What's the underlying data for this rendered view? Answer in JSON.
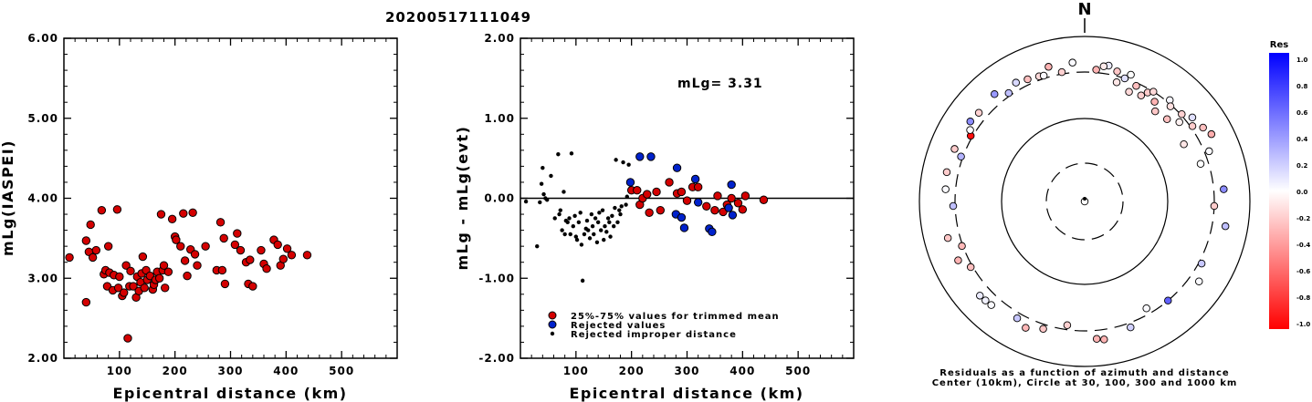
{
  "event_id": "20200517111049",
  "colors": {
    "accepted": "#d40000",
    "rejected": "#0022cc",
    "improper": "#000000"
  },
  "chart_data": [
    {
      "type": "scatter",
      "title": "20200517111049",
      "xlabel": "Epicentral distance (km)",
      "ylabel": "mLg(IASPEI)",
      "xlim": [
        0,
        600
      ],
      "ylim": [
        2.0,
        6.0
      ],
      "x_ticks": [
        "100",
        "200",
        "300",
        "400",
        "500"
      ],
      "y_ticks": [
        "2.00",
        "3.00",
        "4.00",
        "5.00",
        "6.00"
      ],
      "series": [
        {
          "points": [
            [
              10,
              3.26
            ],
            [
              40,
              2.7
            ],
            [
              40,
              3.47
            ],
            [
              45,
              3.33
            ],
            [
              48,
              3.67
            ],
            [
              52,
              3.26
            ],
            [
              58,
              3.35
            ],
            [
              68,
              3.85
            ],
            [
              72,
              3.05
            ],
            [
              75,
              3.1
            ],
            [
              78,
              2.9
            ],
            [
              80,
              3.4
            ],
            [
              82,
              3.07
            ],
            [
              88,
              2.85
            ],
            [
              90,
              3.04
            ],
            [
              96,
              3.86
            ],
            [
              98,
              2.88
            ],
            [
              100,
              3.02
            ],
            [
              105,
              2.78
            ],
            [
              108,
              2.82
            ],
            [
              112,
              3.16
            ],
            [
              115,
              2.25
            ],
            [
              118,
              2.9
            ],
            [
              120,
              3.09
            ],
            [
              125,
              2.9
            ],
            [
              130,
              2.76
            ],
            [
              132,
              3.02
            ],
            [
              135,
              2.84
            ],
            [
              138,
              2.95
            ],
            [
              140,
              3.06
            ],
            [
              142,
              3.27
            ],
            [
              145,
              2.88
            ],
            [
              148,
              3.1
            ],
            [
              150,
              2.98
            ],
            [
              155,
              3.03
            ],
            [
              160,
              2.86
            ],
            [
              162,
              2.92
            ],
            [
              165,
              2.98
            ],
            [
              168,
              3.08
            ],
            [
              172,
              3.0
            ],
            [
              175,
              3.8
            ],
            [
              178,
              3.1
            ],
            [
              180,
              3.16
            ],
            [
              182,
              2.88
            ],
            [
              188,
              3.08
            ],
            [
              195,
              3.74
            ],
            [
              200,
              3.52
            ],
            [
              202,
              3.48
            ],
            [
              210,
              3.4
            ],
            [
              215,
              3.81
            ],
            [
              218,
              3.22
            ],
            [
              222,
              3.03
            ],
            [
              228,
              3.36
            ],
            [
              232,
              3.82
            ],
            [
              236,
              3.3
            ],
            [
              240,
              3.16
            ],
            [
              255,
              3.4
            ],
            [
              275,
              3.1
            ],
            [
              282,
              3.7
            ],
            [
              285,
              3.1
            ],
            [
              288,
              3.5
            ],
            [
              290,
              2.93
            ],
            [
              308,
              3.42
            ],
            [
              312,
              3.56
            ],
            [
              318,
              3.35
            ],
            [
              328,
              3.2
            ],
            [
              332,
              2.93
            ],
            [
              335,
              3.23
            ],
            [
              340,
              2.9
            ],
            [
              355,
              3.35
            ],
            [
              360,
              3.18
            ],
            [
              365,
              3.12
            ],
            [
              378,
              3.48
            ],
            [
              385,
              3.42
            ],
            [
              390,
              3.16
            ],
            [
              395,
              3.24
            ],
            [
              402,
              3.37
            ],
            [
              410,
              3.29
            ],
            [
              438,
              3.29
            ]
          ]
        }
      ]
    },
    {
      "type": "scatter",
      "xlabel": "Epicentral distance (km)",
      "ylabel": "mLg - mLg(evt)",
      "xlim": [
        0,
        600
      ],
      "ylim": [
        -2.0,
        2.0
      ],
      "x_ticks": [
        "100",
        "200",
        "300",
        "400",
        "500"
      ],
      "y_ticks": [
        "-2.00",
        "-1.00",
        "0.00",
        "1.00",
        "2.00"
      ],
      "annotation": "mLg= 3.31",
      "legend_position": "bottom-left",
      "series": [
        {
          "name": "25%-75% values for trimmed mean",
          "marker": "red-circle",
          "points": [
            [
              200,
              0.1
            ],
            [
              210,
              0.1
            ],
            [
              215,
              -0.08
            ],
            [
              220,
              0.0
            ],
            [
              228,
              0.05
            ],
            [
              232,
              -0.18
            ],
            [
              245,
              0.08
            ],
            [
              252,
              -0.15
            ],
            [
              268,
              0.2
            ],
            [
              282,
              0.06
            ],
            [
              290,
              0.08
            ],
            [
              300,
              -0.03
            ],
            [
              310,
              0.14
            ],
            [
              320,
              0.14
            ],
            [
              335,
              -0.1
            ],
            [
              350,
              -0.15
            ],
            [
              355,
              0.03
            ],
            [
              365,
              -0.17
            ],
            [
              372,
              -0.08
            ],
            [
              380,
              0.0
            ],
            [
              392,
              -0.06
            ],
            [
              400,
              -0.14
            ],
            [
              405,
              0.03
            ],
            [
              438,
              -0.02
            ]
          ]
        },
        {
          "name": "Rejected values",
          "marker": "blue-circle",
          "points": [
            [
              198,
              0.2
            ],
            [
              215,
              0.52
            ],
            [
              235,
              0.52
            ],
            [
              280,
              -0.2
            ],
            [
              282,
              0.38
            ],
            [
              290,
              -0.24
            ],
            [
              295,
              -0.37
            ],
            [
              315,
              0.24
            ],
            [
              320,
              -0.05
            ],
            [
              340,
              -0.38
            ],
            [
              345,
              -0.42
            ],
            [
              375,
              -0.12
            ],
            [
              380,
              0.17
            ],
            [
              382,
              -0.21
            ]
          ]
        },
        {
          "name": "Rejected improper distance",
          "marker": "black-dot",
          "points": [
            [
              10,
              -0.04
            ],
            [
              30,
              -0.6
            ],
            [
              35,
              -0.05
            ],
            [
              38,
              0.18
            ],
            [
              40,
              0.38
            ],
            [
              42,
              0.05
            ],
            [
              45,
              0.0
            ],
            [
              48,
              -0.02
            ],
            [
              55,
              0.28
            ],
            [
              62,
              -0.25
            ],
            [
              68,
              0.55
            ],
            [
              70,
              -0.2
            ],
            [
              72,
              -0.15
            ],
            [
              75,
              -0.4
            ],
            [
              78,
              0.08
            ],
            [
              80,
              -0.45
            ],
            [
              82,
              -0.28
            ],
            [
              85,
              -0.3
            ],
            [
              88,
              -0.25
            ],
            [
              90,
              -0.45
            ],
            [
              92,
              0.56
            ],
            [
              95,
              -0.35
            ],
            [
              98,
              -0.22
            ],
            [
              100,
              -0.48
            ],
            [
              102,
              -0.52
            ],
            [
              105,
              -0.3
            ],
            [
              108,
              -0.18
            ],
            [
              110,
              -0.58
            ],
            [
              112,
              -1.03
            ],
            [
              115,
              -0.45
            ],
            [
              118,
              -0.38
            ],
            [
              120,
              -0.28
            ],
            [
              122,
              -0.4
            ],
            [
              125,
              -0.5
            ],
            [
              128,
              -0.2
            ],
            [
              130,
              -0.35
            ],
            [
              132,
              -0.45
            ],
            [
              135,
              -0.25
            ],
            [
              138,
              -0.55
            ],
            [
              140,
              -0.3
            ],
            [
              142,
              -0.18
            ],
            [
              145,
              -0.4
            ],
            [
              148,
              -0.15
            ],
            [
              150,
              -0.52
            ],
            [
              152,
              -0.35
            ],
            [
              155,
              -0.42
            ],
            [
              158,
              -0.25
            ],
            [
              160,
              -0.3
            ],
            [
              162,
              -0.48
            ],
            [
              165,
              -0.22
            ],
            [
              168,
              -0.35
            ],
            [
              170,
              -0.12
            ],
            [
              172,
              0.48
            ],
            [
              175,
              -0.3
            ],
            [
              178,
              -0.15
            ],
            [
              180,
              -0.2
            ],
            [
              182,
              -0.1
            ],
            [
              185,
              0.45
            ],
            [
              190,
              -0.08
            ],
            [
              192,
              0.02
            ],
            [
              195,
              0.42
            ]
          ]
        }
      ]
    },
    {
      "type": "polar-scatter",
      "north_label": "N",
      "caption_line1": "Residuals as a function of azimuth and distance",
      "caption_line2": "Center (10km), Circle at 30, 100, 300 and 1000 km",
      "ring_distances_km": [
        30,
        100,
        300,
        1000
      ],
      "colorbar": {
        "title": "Res",
        "ticks": [
          "1.0",
          "0.8",
          "0.6",
          "0.4",
          "0.2",
          "0.0",
          "-0.2",
          "-0.4",
          "-0.6",
          "-0.8",
          "-1.0"
        ],
        "max_color": "#0000ff",
        "zero_color": "#ffffff",
        "min_color": "#ff0000"
      },
      "points": [
        {
          "az": 10,
          "dist": 400,
          "res": 0.08
        },
        {
          "az": 20,
          "dist": 360,
          "res": 0.0
        },
        {
          "az": 18,
          "dist": 300,
          "res": 0.12
        },
        {
          "az": 15,
          "dist": 260,
          "res": -0.1
        },
        {
          "az": 22,
          "dist": 230,
          "res": -0.15
        },
        {
          "az": 24,
          "dist": 280,
          "res": -0.25
        },
        {
          "az": 28,
          "dist": 240,
          "res": -0.18
        },
        {
          "az": 30,
          "dist": 275,
          "res": -0.2
        },
        {
          "az": 32,
          "dist": 300,
          "res": -0.15
        },
        {
          "az": 35,
          "dist": 250,
          "res": -0.3
        },
        {
          "az": 38,
          "dist": 210,
          "res": -0.22
        },
        {
          "az": 40,
          "dist": 330,
          "res": 0.04
        },
        {
          "az": 42,
          "dist": 290,
          "res": -0.12
        },
        {
          "az": 45,
          "dist": 220,
          "res": -0.25
        },
        {
          "az": 48,
          "dist": 310,
          "res": -0.18
        },
        {
          "az": 50,
          "dist": 260,
          "res": -0.05
        },
        {
          "az": 52,
          "dist": 380,
          "res": 0.12
        },
        {
          "az": 55,
          "dist": 320,
          "res": -0.2
        },
        {
          "az": 58,
          "dist": 420,
          "res": -0.25
        },
        {
          "az": 60,
          "dist": 210,
          "res": -0.1
        },
        {
          "az": 62,
          "dist": 480,
          "res": -0.32
        },
        {
          "az": 68,
          "dist": 350,
          "res": 0.02
        },
        {
          "az": 72,
          "dist": 250,
          "res": 0.0
        },
        {
          "az": 85,
          "dist": 420,
          "res": 0.45
        },
        {
          "az": 92,
          "dist": 300,
          "res": -0.2
        },
        {
          "az": 100,
          "dist": 470,
          "res": 0.25
        },
        {
          "az": 118,
          "dist": 330,
          "res": 0.22
        },
        {
          "az": 125,
          "dist": 420,
          "res": 0.02
        },
        {
          "az": 140,
          "dist": 300,
          "res": 0.62
        },
        {
          "az": 150,
          "dist": 260,
          "res": 0.02
        },
        {
          "az": 160,
          "dist": 350,
          "res": 0.18
        },
        {
          "az": 172,
          "dist": 420,
          "res": -0.3
        },
        {
          "az": 175,
          "dist": 400,
          "res": -0.3
        },
        {
          "az": 188,
          "dist": 270,
          "res": -0.18
        },
        {
          "az": 198,
          "dist": 350,
          "res": -0.22
        },
        {
          "az": 205,
          "dist": 420,
          "res": -0.28
        },
        {
          "az": 210,
          "dist": 360,
          "res": 0.22
        },
        {
          "az": 222,
          "dist": 420,
          "res": 0.02
        },
        {
          "az": 225,
          "dist": 430,
          "res": 0.05
        },
        {
          "az": 228,
          "dist": 440,
          "res": 0.08
        },
        {
          "az": 240,
          "dist": 320,
          "res": -0.25
        },
        {
          "az": 245,
          "dist": 420,
          "res": -0.3
        },
        {
          "az": 250,
          "dist": 310,
          "res": -0.28
        },
        {
          "az": 255,
          "dist": 450,
          "res": -0.22
        },
        {
          "az": 268,
          "dist": 320,
          "res": 0.25
        },
        {
          "az": 275,
          "dist": 420,
          "res": 0.02
        },
        {
          "az": 282,
          "dist": 440,
          "res": -0.2
        },
        {
          "az": 290,
          "dist": 320,
          "res": 0.3
        },
        {
          "az": 292,
          "dist": 430,
          "res": -0.2
        },
        {
          "az": 300,
          "dist": 320,
          "res": -0.95
        },
        {
          "az": 302,
          "dist": 360,
          "res": 0.02
        },
        {
          "az": 305,
          "dist": 420,
          "res": 0.45
        },
        {
          "az": 310,
          "dist": 400,
          "res": -0.18
        },
        {
          "az": 320,
          "dist": 430,
          "res": 0.4
        },
        {
          "az": 325,
          "dist": 330,
          "res": 0.25
        },
        {
          "az": 330,
          "dist": 390,
          "res": 0.15
        },
        {
          "az": 335,
          "dist": 360,
          "res": -0.25
        },
        {
          "az": 340,
          "dist": 340,
          "res": -0.15
        },
        {
          "az": 342,
          "dist": 330,
          "res": 0.02
        },
        {
          "az": 345,
          "dist": 420,
          "res": -0.3
        },
        {
          "az": 350,
          "dist": 320,
          "res": -0.18
        },
        {
          "az": 355,
          "dist": 420,
          "res": 0.02
        },
        {
          "az": 5,
          "dist": 330,
          "res": -0.3
        },
        {
          "az": 8,
          "dist": 380,
          "res": -0.08
        },
        {
          "az": 14,
          "dist": 350,
          "res": -0.22
        },
        {
          "az": 0,
          "dist": 10,
          "res": 0.0
        }
      ]
    }
  ]
}
